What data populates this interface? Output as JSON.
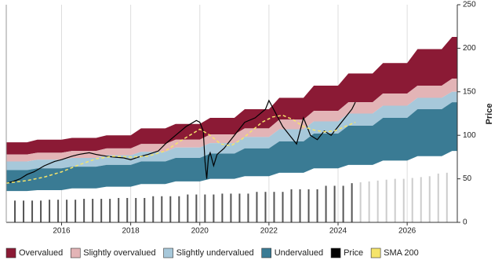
{
  "chart_data": {
    "type": "band",
    "y_label": "Price",
    "xlim": [
      2014.4,
      2027.45
    ],
    "xticks": [
      2016,
      2018,
      2020,
      2022,
      2024,
      2026
    ],
    "ylim": [
      0,
      250
    ],
    "yticks": [
      0,
      50,
      100,
      150,
      200,
      250
    ],
    "grid": "x",
    "legend": "bottom",
    "x": [
      2014.4,
      2015,
      2015.3,
      2016,
      2016.3,
      2017,
      2017.3,
      2018,
      2018.3,
      2019,
      2019.3,
      2020,
      2020.3,
      2021,
      2021.3,
      2022,
      2022.3,
      2023,
      2023.3,
      2024,
      2024.3,
      2025,
      2025.3,
      2026,
      2026.3,
      2027,
      2027.3,
      2027.45
    ],
    "series": [
      {
        "name": "Overvalued",
        "type": "band",
        "color": "#8b1a35",
        "values": [
          92,
          92,
          95,
          95,
          97,
          97,
          100,
          100,
          108,
          108,
          113,
          113,
          120,
          120,
          130,
          130,
          143,
          143,
          157,
          157,
          171,
          171,
          183,
          183,
          199,
          199,
          213,
          213
        ]
      },
      {
        "name": "Slightly overvalued",
        "type": "band",
        "color": "#e3b4b6",
        "values": [
          78,
          78,
          80,
          80,
          82,
          82,
          85,
          85,
          90,
          90,
          95,
          95,
          101,
          101,
          108,
          108,
          118,
          118,
          128,
          128,
          138,
          138,
          148,
          148,
          157,
          157,
          165,
          165
        ]
      },
      {
        "name": "Slightly undervalued",
        "type": "band",
        "color": "#a7c8da",
        "values": [
          70,
          70,
          72,
          72,
          74,
          74,
          77,
          77,
          81,
          81,
          86,
          86,
          91,
          91,
          98,
          98,
          107,
          107,
          116,
          116,
          125,
          125,
          134,
          134,
          143,
          143,
          150,
          150
        ]
      },
      {
        "name": "Undervalued",
        "type": "band",
        "color": "#3a7b94",
        "values": [
          60,
          60,
          62,
          62,
          64,
          64,
          66,
          66,
          70,
          70,
          74,
          74,
          79,
          79,
          85,
          85,
          93,
          93,
          102,
          102,
          111,
          111,
          120,
          120,
          130,
          130,
          138,
          138
        ],
        "lower": [
          36,
          36,
          37,
          37,
          39,
          39,
          41,
          41,
          44,
          44,
          47,
          47,
          50,
          50,
          53,
          53,
          57,
          57,
          62,
          62,
          66,
          66,
          71,
          71,
          76,
          76,
          82,
          82
        ]
      },
      {
        "name": "Price",
        "type": "line",
        "color": "#000000",
        "x": [
          2014.4,
          2014.6,
          2014.8,
          2015,
          2015.2,
          2015.5,
          2015.8,
          2016,
          2016.3,
          2016.5,
          2016.8,
          2017,
          2017.3,
          2017.5,
          2017.8,
          2018,
          2018.3,
          2018.5,
          2018.8,
          2019,
          2019.3,
          2019.6,
          2019.9,
          2020,
          2020.1,
          2020.15,
          2020.2,
          2020.25,
          2020.3,
          2020.4,
          2020.5,
          2020.7,
          2021,
          2021.3,
          2021.6,
          2021.9,
          2022,
          2022.2,
          2022.4,
          2022.6,
          2022.8,
          2023,
          2023.2,
          2023.4,
          2023.6,
          2023.8,
          2024,
          2024.2,
          2024.4,
          2024.5
        ],
        "values": [
          45,
          47,
          50,
          55,
          58,
          65,
          70,
          72,
          76,
          78,
          80,
          78,
          76,
          75,
          74,
          72,
          76,
          78,
          82,
          90,
          100,
          110,
          117,
          115,
          105,
          70,
          50,
          75,
          80,
          65,
          78,
          85,
          100,
          115,
          120,
          130,
          140,
          125,
          110,
          100,
          90,
          120,
          100,
          95,
          105,
          100,
          110,
          120,
          130,
          138
        ]
      },
      {
        "name": "SMA 200",
        "type": "line",
        "dashed": true,
        "color": "#f5e46a",
        "x": [
          2014.4,
          2015,
          2015.5,
          2016,
          2016.5,
          2017,
          2017.5,
          2018,
          2018.5,
          2019,
          2019.5,
          2020,
          2020.3,
          2020.6,
          2020.9,
          2021.2,
          2021.5,
          2021.8,
          2022.1,
          2022.4,
          2022.7,
          2023,
          2023.3,
          2023.6,
          2023.9,
          2024.2,
          2024.5
        ],
        "values": [
          45,
          48,
          52,
          58,
          66,
          73,
          76,
          75,
          76,
          82,
          95,
          107,
          100,
          90,
          88,
          95,
          105,
          115,
          121,
          123,
          118,
          110,
          106,
          104,
          105,
          110,
          115
        ]
      },
      {
        "type": "bar",
        "color": "#555555",
        "x": [
          2014.65,
          2014.9,
          2015.15,
          2015.4,
          2015.65,
          2015.9,
          2016.15,
          2016.4,
          2016.65,
          2016.9,
          2017.15,
          2017.4,
          2017.65,
          2017.9,
          2018.15,
          2018.4,
          2018.65,
          2018.9,
          2019.15,
          2019.4,
          2019.65,
          2019.9,
          2020.15,
          2020.4,
          2020.65,
          2020.9,
          2021.15,
          2021.4,
          2021.65,
          2021.9,
          2022.15,
          2022.4,
          2022.65,
          2022.9,
          2023.15,
          2023.4,
          2023.65,
          2023.9,
          2024.15,
          2024.4
        ],
        "values": [
          25,
          25,
          25,
          25,
          26,
          26,
          26,
          26,
          27,
          27,
          27,
          27,
          28,
          28,
          28,
          28,
          30,
          30,
          30,
          30,
          32,
          32,
          32,
          32,
          33,
          33,
          33,
          33,
          35,
          35,
          35,
          35,
          38,
          38,
          38,
          38,
          42,
          42,
          42,
          45
        ]
      },
      {
        "type": "bar",
        "color": "#cccccc",
        "x": [
          2024.65,
          2024.9,
          2025.15,
          2025.4,
          2025.65,
          2025.9,
          2026.15,
          2026.4,
          2026.65,
          2026.9,
          2027.15
        ],
        "values": [
          46,
          47,
          48,
          49,
          50,
          50,
          51,
          52,
          53,
          56,
          57
        ]
      }
    ]
  }
}
